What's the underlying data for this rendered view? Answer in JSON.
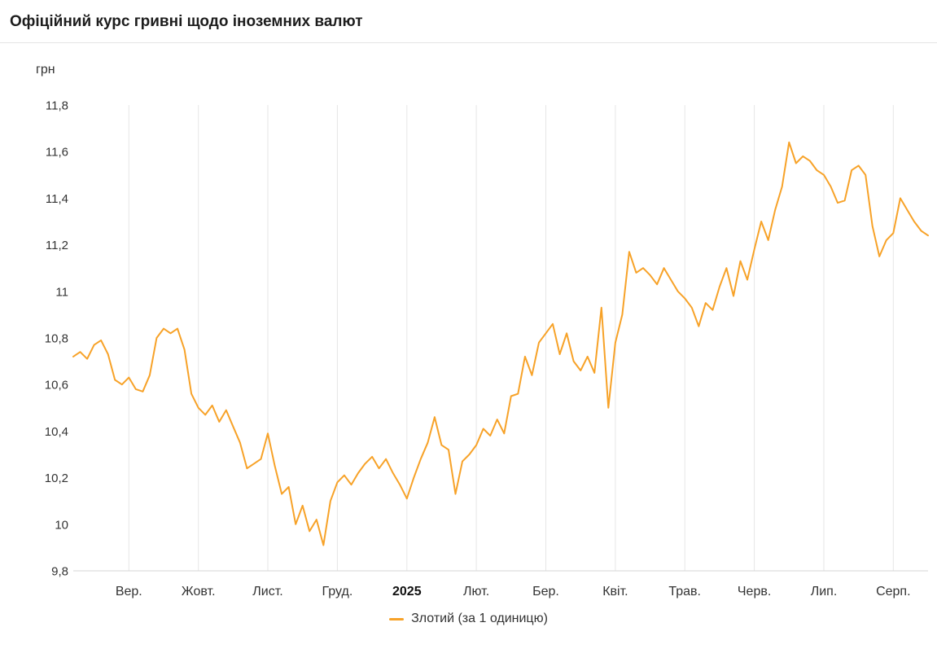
{
  "header": {
    "title": "Офіційний курс гривні щодо іноземних валют"
  },
  "chart": {
    "unit_label": "грн",
    "legend": {
      "label": "Злотий (за 1 одиницю)"
    }
  },
  "colors": {
    "series": "#f7a228",
    "gridline": "#e6e6e6",
    "axis_line": "#d6d6d6",
    "text": "#333333",
    "title": "#1d1d1d"
  },
  "chart_data": {
    "type": "line",
    "title": "Офіційний курс гривні щодо іноземних валют",
    "ylabel": "грн",
    "ylim": [
      9.8,
      11.8
    ],
    "grid": "vertical-only",
    "legend_position": "bottom",
    "y_tick_values": [
      9.8,
      10,
      10.2,
      10.4,
      10.6,
      10.8,
      11,
      11.2,
      11.4,
      11.6,
      11.8
    ],
    "y_tick_labels": [
      "9,8",
      "10",
      "10,2",
      "10,4",
      "10,6",
      "10,8",
      "11",
      "11,2",
      "11,4",
      "11,6",
      "11,8"
    ],
    "x_tick_labels": [
      "Вер.",
      "Жовт.",
      "Лист.",
      "Груд.",
      "2025",
      "Лют.",
      "Бер.",
      "Квіт.",
      "Трав.",
      "Черв.",
      "Лип.",
      "Серп."
    ],
    "x_tick_indices": [
      8,
      18,
      28,
      38,
      48,
      58,
      68,
      78,
      88,
      98,
      108,
      118
    ],
    "x_tick_bold_label": "2025",
    "series": [
      {
        "name": "Злотий (за 1 одиницю)",
        "color": "#f7a228",
        "values": [
          10.72,
          10.74,
          10.71,
          10.77,
          10.79,
          10.73,
          10.62,
          10.6,
          10.63,
          10.58,
          10.57,
          10.64,
          10.8,
          10.84,
          10.82,
          10.84,
          10.75,
          10.56,
          10.5,
          10.47,
          10.51,
          10.44,
          10.49,
          10.42,
          10.35,
          10.24,
          10.26,
          10.28,
          10.39,
          10.25,
          10.13,
          10.16,
          10.0,
          10.08,
          9.97,
          10.02,
          9.91,
          10.1,
          10.18,
          10.21,
          10.17,
          10.22,
          10.26,
          10.29,
          10.24,
          10.28,
          10.22,
          10.17,
          10.11,
          10.2,
          10.28,
          10.35,
          10.46,
          10.34,
          10.32,
          10.13,
          10.27,
          10.3,
          10.34,
          10.41,
          10.38,
          10.45,
          10.39,
          10.55,
          10.56,
          10.72,
          10.64,
          10.78,
          10.82,
          10.86,
          10.73,
          10.82,
          10.7,
          10.66,
          10.72,
          10.65,
          10.93,
          10.5,
          10.78,
          10.9,
          11.17,
          11.08,
          11.1,
          11.07,
          11.03,
          11.1,
          11.05,
          11.0,
          10.97,
          10.93,
          10.85,
          10.95,
          10.92,
          11.02,
          11.1,
          10.98,
          11.13,
          11.05,
          11.18,
          11.3,
          11.22,
          11.35,
          11.45,
          11.64,
          11.55,
          11.58,
          11.56,
          11.52,
          11.5,
          11.45,
          11.38,
          11.39,
          11.52,
          11.54,
          11.5,
          11.28,
          11.15,
          11.22,
          11.25,
          11.4,
          11.35,
          11.3,
          11.26,
          11.24
        ]
      }
    ]
  }
}
